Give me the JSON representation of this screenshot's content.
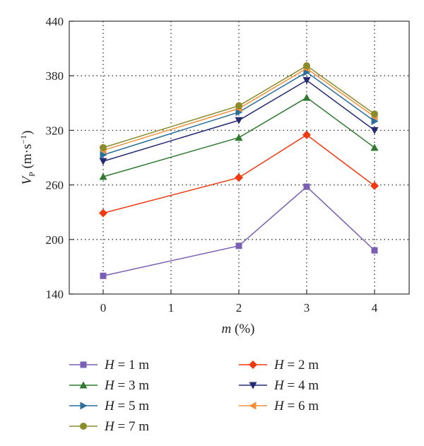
{
  "chart_data": {
    "type": "line",
    "x_categories": [
      "0",
      "1",
      "2",
      "3",
      "4"
    ],
    "x_values": [
      0,
      2,
      3,
      4
    ],
    "xlabel": {
      "italic": "m",
      "rest": " (%)"
    },
    "ylabel": {
      "italic": "V",
      "sub": "P",
      "rest": " (m·s",
      "sup": "−1",
      "end": ")"
    },
    "ylim": [
      140,
      440
    ],
    "yticks": [
      140,
      200,
      260,
      320,
      380,
      440
    ],
    "grid": true,
    "legend_position": "bottom",
    "series": [
      {
        "name": "H = 1 m",
        "color": "#7b5fb5",
        "marker": "square",
        "values": [
          160,
          193,
          258,
          188
        ]
      },
      {
        "name": "H = 2 m",
        "color": "#f03a12",
        "marker": "diamond",
        "values": [
          229,
          268,
          315,
          259
        ]
      },
      {
        "name": "H = 3 m",
        "color": "#2f7a30",
        "marker": "triangle-up",
        "values": [
          269,
          312,
          356,
          301
        ]
      },
      {
        "name": "H = 4 m",
        "color": "#242a73",
        "marker": "triangle-down",
        "values": [
          286,
          331,
          375,
          320
        ]
      },
      {
        "name": "H = 5 m",
        "color": "#2a6e9c",
        "marker": "triangle-right",
        "values": [
          293,
          340,
          384,
          330
        ]
      },
      {
        "name": "H = 6 m",
        "color": "#f0913a",
        "marker": "triangle-left",
        "values": [
          298,
          344,
          388,
          335
        ]
      },
      {
        "name": "H = 7 m",
        "color": "#8b8b2c",
        "marker": "circle",
        "values": [
          301,
          347,
          391,
          338
        ]
      }
    ]
  }
}
